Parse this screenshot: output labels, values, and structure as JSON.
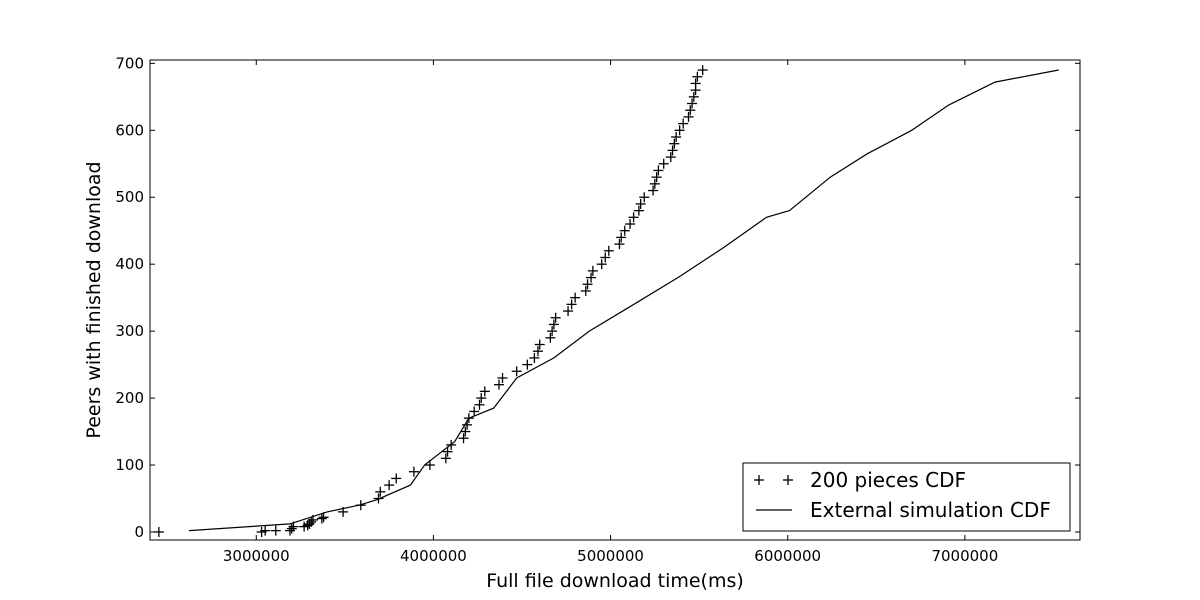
{
  "chart_data": {
    "type": "scatter",
    "xlabel": "Full file download time(ms)",
    "ylabel": "Peers with finished download",
    "xlim": [
      2400000,
      7650000
    ],
    "ylim": [
      -12,
      705
    ],
    "xticks": [
      3000000,
      4000000,
      5000000,
      6000000,
      7000000
    ],
    "yticks": [
      0,
      100,
      200,
      300,
      400,
      500,
      600,
      700
    ],
    "legend_position": "lower-right",
    "series": [
      {
        "name": "200 pieces CDF",
        "style": "markers",
        "marker": "+",
        "color": "#000000",
        "points": [
          [
            2450000,
            0
          ],
          [
            3030000,
            0
          ],
          [
            3050000,
            2
          ],
          [
            3110000,
            2
          ],
          [
            3190000,
            2
          ],
          [
            3200000,
            5
          ],
          [
            3210000,
            8
          ],
          [
            3270000,
            8
          ],
          [
            3290000,
            10
          ],
          [
            3300000,
            12
          ],
          [
            3310000,
            15
          ],
          [
            3320000,
            18
          ],
          [
            3370000,
            20
          ],
          [
            3380000,
            22
          ],
          [
            3490000,
            30
          ],
          [
            3590000,
            40
          ],
          [
            3690000,
            50
          ],
          [
            3700000,
            60
          ],
          [
            3750000,
            70
          ],
          [
            3790000,
            80
          ],
          [
            3890000,
            90
          ],
          [
            3980000,
            100
          ],
          [
            4070000,
            110
          ],
          [
            4080000,
            120
          ],
          [
            4100000,
            130
          ],
          [
            4170000,
            140
          ],
          [
            4180000,
            150
          ],
          [
            4190000,
            160
          ],
          [
            4200000,
            170
          ],
          [
            4230000,
            180
          ],
          [
            4260000,
            190
          ],
          [
            4270000,
            200
          ],
          [
            4290000,
            210
          ],
          [
            4370000,
            220
          ],
          [
            4390000,
            230
          ],
          [
            4470000,
            240
          ],
          [
            4530000,
            250
          ],
          [
            4570000,
            260
          ],
          [
            4590000,
            270
          ],
          [
            4600000,
            280
          ],
          [
            4660000,
            290
          ],
          [
            4670000,
            300
          ],
          [
            4680000,
            310
          ],
          [
            4690000,
            320
          ],
          [
            4760000,
            330
          ],
          [
            4780000,
            340
          ],
          [
            4800000,
            350
          ],
          [
            4860000,
            360
          ],
          [
            4870000,
            370
          ],
          [
            4890000,
            380
          ],
          [
            4900000,
            390
          ],
          [
            4950000,
            400
          ],
          [
            4970000,
            410
          ],
          [
            4990000,
            420
          ],
          [
            5050000,
            430
          ],
          [
            5060000,
            440
          ],
          [
            5080000,
            450
          ],
          [
            5110000,
            460
          ],
          [
            5130000,
            470
          ],
          [
            5160000,
            480
          ],
          [
            5170000,
            490
          ],
          [
            5190000,
            500
          ],
          [
            5240000,
            510
          ],
          [
            5250000,
            520
          ],
          [
            5260000,
            530
          ],
          [
            5270000,
            540
          ],
          [
            5300000,
            550
          ],
          [
            5340000,
            560
          ],
          [
            5350000,
            570
          ],
          [
            5360000,
            580
          ],
          [
            5370000,
            590
          ],
          [
            5390000,
            600
          ],
          [
            5410000,
            610
          ],
          [
            5440000,
            620
          ],
          [
            5450000,
            630
          ],
          [
            5460000,
            640
          ],
          [
            5470000,
            650
          ],
          [
            5480000,
            660
          ],
          [
            5480000,
            670
          ],
          [
            5490000,
            680
          ],
          [
            5520000,
            690
          ]
        ]
      },
      {
        "name": "External simulation CDF",
        "style": "line",
        "color": "#000000",
        "points": [
          [
            2620000,
            2
          ],
          [
            3190000,
            12
          ],
          [
            3400000,
            30
          ],
          [
            3580000,
            40
          ],
          [
            3680000,
            48
          ],
          [
            3870000,
            70
          ],
          [
            3950000,
            100
          ],
          [
            4120000,
            135
          ],
          [
            4200000,
            170
          ],
          [
            4340000,
            185
          ],
          [
            4470000,
            230
          ],
          [
            4680000,
            260
          ],
          [
            4880000,
            300
          ],
          [
            5100000,
            335
          ],
          [
            5380000,
            380
          ],
          [
            5640000,
            425
          ],
          [
            5880000,
            470
          ],
          [
            6010000,
            480
          ],
          [
            6240000,
            530
          ],
          [
            6450000,
            565
          ],
          [
            6700000,
            600
          ],
          [
            6910000,
            638
          ],
          [
            7170000,
            672
          ],
          [
            7530000,
            690
          ]
        ]
      }
    ]
  }
}
